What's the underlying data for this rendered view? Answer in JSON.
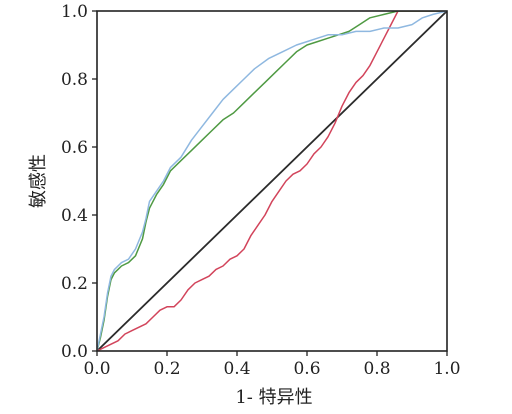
{
  "chart_data": {
    "type": "line",
    "title": "",
    "xlabel": "1- 特异性",
    "ylabel": "敏感性",
    "xlim": [
      0,
      1
    ],
    "ylim": [
      0,
      1
    ],
    "grid": false,
    "legend": "none",
    "x_ticks": [
      {
        "value": 0.0,
        "label": "0.0"
      },
      {
        "value": 0.2,
        "label": "0.2"
      },
      {
        "value": 0.4,
        "label": "0.4"
      },
      {
        "value": 0.6,
        "label": "0.6"
      },
      {
        "value": 0.8,
        "label": "0.8"
      },
      {
        "value": 1.0,
        "label": "1.0"
      }
    ],
    "y_ticks": [
      {
        "value": 0.0,
        "label": "0.0"
      },
      {
        "value": 0.2,
        "label": "0.2"
      },
      {
        "value": 0.4,
        "label": "0.4"
      },
      {
        "value": 0.6,
        "label": "0.6"
      },
      {
        "value": 0.8,
        "label": "0.8"
      },
      {
        "value": 1.0,
        "label": "1.0"
      }
    ],
    "series": [
      {
        "color": "#2b2b2b",
        "x": [
          0,
          1
        ],
        "y": [
          0,
          1
        ]
      },
      {
        "color": "#8fb8e0",
        "x": [
          0,
          0.01,
          0.02,
          0.03,
          0.04,
          0.05,
          0.06,
          0.07,
          0.09,
          0.11,
          0.13,
          0.14,
          0.15,
          0.17,
          0.19,
          0.21,
          0.24,
          0.27,
          0.3,
          0.33,
          0.36,
          0.39,
          0.42,
          0.45,
          0.49,
          0.53,
          0.57,
          0.6,
          0.63,
          0.66,
          0.7,
          0.74,
          0.78,
          0.82,
          0.86,
          0.9,
          0.93,
          0.96,
          1.0
        ],
        "y": [
          0,
          0.05,
          0.1,
          0.17,
          0.22,
          0.24,
          0.25,
          0.26,
          0.27,
          0.3,
          0.35,
          0.39,
          0.44,
          0.47,
          0.5,
          0.54,
          0.57,
          0.62,
          0.66,
          0.7,
          0.74,
          0.77,
          0.8,
          0.83,
          0.86,
          0.88,
          0.9,
          0.91,
          0.92,
          0.93,
          0.93,
          0.94,
          0.94,
          0.95,
          0.95,
          0.96,
          0.98,
          0.99,
          1.0
        ]
      },
      {
        "color": "#4f9a43",
        "x": [
          0,
          0.01,
          0.02,
          0.03,
          0.04,
          0.05,
          0.06,
          0.07,
          0.09,
          0.11,
          0.13,
          0.14,
          0.15,
          0.17,
          0.19,
          0.21,
          0.24,
          0.27,
          0.3,
          0.33,
          0.36,
          0.39,
          0.42,
          0.45,
          0.48,
          0.51,
          0.54,
          0.57,
          0.6,
          0.63,
          0.66,
          0.69,
          0.72,
          0.75,
          0.78,
          0.82,
          0.86,
          0.9,
          0.95,
          1.0
        ],
        "y": [
          0,
          0.04,
          0.09,
          0.16,
          0.21,
          0.23,
          0.24,
          0.25,
          0.26,
          0.28,
          0.33,
          0.38,
          0.42,
          0.46,
          0.49,
          0.53,
          0.56,
          0.59,
          0.62,
          0.65,
          0.68,
          0.7,
          0.73,
          0.76,
          0.79,
          0.82,
          0.85,
          0.88,
          0.9,
          0.91,
          0.92,
          0.93,
          0.94,
          0.96,
          0.98,
          0.99,
          1.0,
          1.0,
          1.0,
          1.0
        ]
      },
      {
        "color": "#d2445b",
        "x": [
          0,
          0.02,
          0.04,
          0.06,
          0.08,
          0.1,
          0.12,
          0.14,
          0.16,
          0.18,
          0.2,
          0.22,
          0.24,
          0.26,
          0.28,
          0.3,
          0.32,
          0.34,
          0.36,
          0.38,
          0.4,
          0.42,
          0.44,
          0.46,
          0.48,
          0.5,
          0.52,
          0.54,
          0.56,
          0.58,
          0.6,
          0.62,
          0.64,
          0.66,
          0.68,
          0.7,
          0.72,
          0.74,
          0.76,
          0.78,
          0.8,
          0.82,
          0.84,
          0.86,
          0.9,
          1.0
        ],
        "y": [
          0,
          0.01,
          0.02,
          0.03,
          0.05,
          0.06,
          0.07,
          0.08,
          0.1,
          0.12,
          0.13,
          0.13,
          0.15,
          0.18,
          0.2,
          0.21,
          0.22,
          0.24,
          0.25,
          0.27,
          0.28,
          0.3,
          0.34,
          0.37,
          0.4,
          0.44,
          0.47,
          0.5,
          0.52,
          0.53,
          0.55,
          0.58,
          0.6,
          0.63,
          0.67,
          0.72,
          0.76,
          0.79,
          0.81,
          0.84,
          0.88,
          0.92,
          0.96,
          1.0,
          1.0,
          1.0
        ]
      }
    ]
  }
}
